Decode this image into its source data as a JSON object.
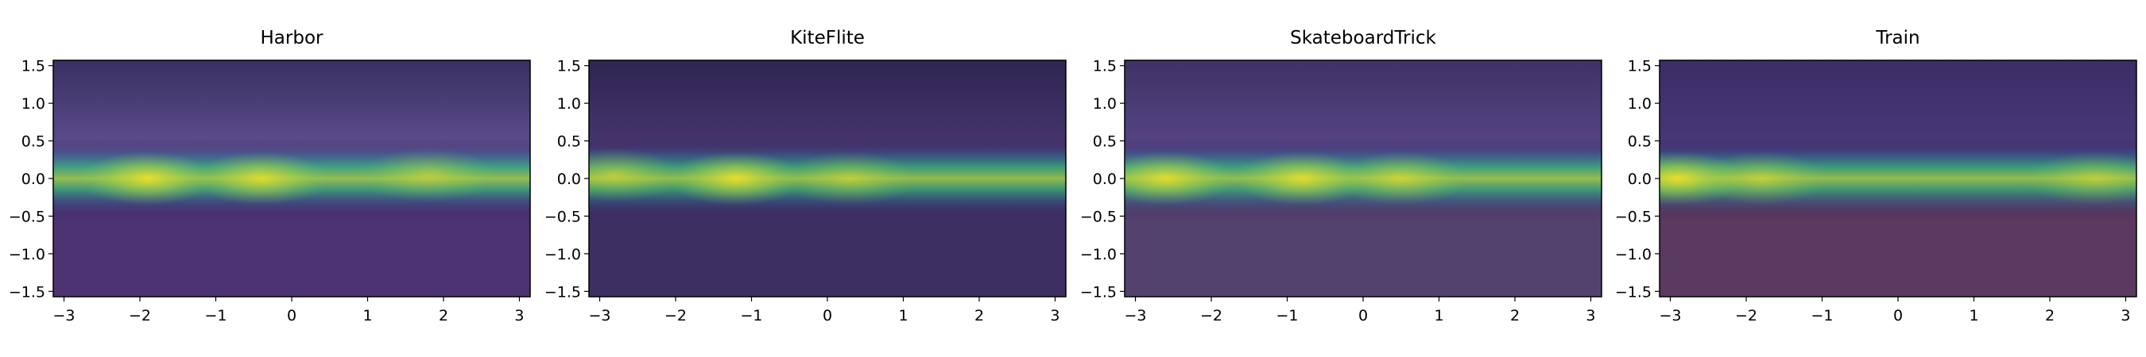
{
  "chart_data": [
    {
      "type": "heatmap",
      "title": "Harbor",
      "xlabel": "",
      "ylabel": "",
      "xlim": [
        -3.14159,
        3.14159
      ],
      "ylim": [
        -1.5708,
        1.5708
      ],
      "xticks": [
        -3,
        -2,
        -1,
        0,
        1,
        2,
        3
      ],
      "yticks": [
        -1.5,
        -1.0,
        -0.5,
        0.0,
        0.5,
        1.0,
        1.5
      ],
      "hotspots": [
        {
          "lon": -1.9,
          "lat": 0.0,
          "intensity": 1.0
        },
        {
          "lon": -0.4,
          "lat": 0.0,
          "intensity": 0.9
        },
        {
          "lon": 1.8,
          "lat": 0.05,
          "intensity": 0.55
        }
      ],
      "colors": {
        "sky": "#645596",
        "ground": "#4c3472",
        "shade": "#3a2f63"
      }
    },
    {
      "type": "heatmap",
      "title": "KiteFlite",
      "xlabel": "",
      "ylabel": "",
      "xlim": [
        -3.14159,
        3.14159
      ],
      "ylim": [
        -1.5708,
        1.5708
      ],
      "xticks": [
        -3,
        -2,
        -1,
        0,
        1,
        2,
        3
      ],
      "yticks": [
        -1.5,
        -1.0,
        -0.5,
        0.0,
        0.5,
        1.0,
        1.5
      ],
      "hotspots": [
        {
          "lon": -1.2,
          "lat": 0.0,
          "intensity": 1.0
        },
        {
          "lon": -2.8,
          "lat": 0.05,
          "intensity": 0.6
        },
        {
          "lon": 0.3,
          "lat": 0.0,
          "intensity": 0.55
        }
      ],
      "colors": {
        "sky": "#4a3a73",
        "ground": "#3e2f62",
        "shade": "#2f2552"
      }
    },
    {
      "type": "heatmap",
      "title": "SkateboardTrick",
      "xlabel": "",
      "ylabel": "",
      "xlim": [
        -3.14159,
        3.14159
      ],
      "ylim": [
        -1.5708,
        1.5708
      ],
      "xticks": [
        -3,
        -2,
        -1,
        0,
        1,
        2,
        3
      ],
      "yticks": [
        -1.5,
        -1.0,
        -0.5,
        0.0,
        0.5,
        1.0,
        1.5
      ],
      "hotspots": [
        {
          "lon": -2.6,
          "lat": 0.0,
          "intensity": 0.95
        },
        {
          "lon": -0.8,
          "lat": 0.0,
          "intensity": 0.95
        },
        {
          "lon": 0.5,
          "lat": 0.0,
          "intensity": 0.7
        }
      ],
      "colors": {
        "sky": "#5a4a8a",
        "ground": "#54426e",
        "shade": "#3f3266"
      }
    },
    {
      "type": "heatmap",
      "title": "Train",
      "xlabel": "",
      "ylabel": "",
      "xlim": [
        -3.14159,
        3.14159
      ],
      "ylim": [
        -1.5708,
        1.5708
      ],
      "xticks": [
        -3,
        -2,
        -1,
        0,
        1,
        2,
        3
      ],
      "yticks": [
        -1.5,
        -1.0,
        -0.5,
        0.0,
        0.5,
        1.0,
        1.5
      ],
      "hotspots": [
        {
          "lon": -2.9,
          "lat": 0.0,
          "intensity": 1.0
        },
        {
          "lon": -1.8,
          "lat": 0.0,
          "intensity": 0.6
        },
        {
          "lon": 2.6,
          "lat": 0.0,
          "intensity": 0.55
        }
      ],
      "colors": {
        "sky": "#4a3b7c",
        "ground": "#5a3a5e",
        "shade": "#3b2d66"
      }
    }
  ]
}
